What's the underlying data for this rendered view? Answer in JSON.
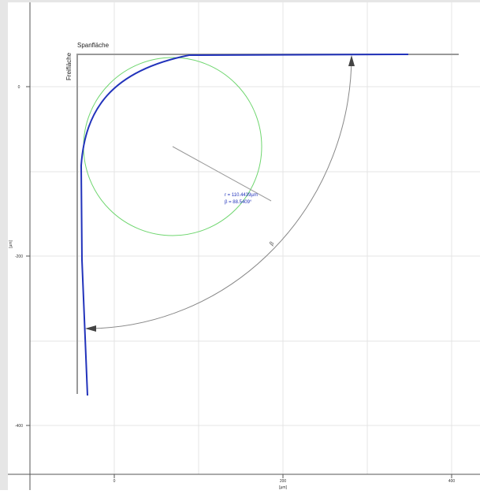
{
  "labels": {
    "rake_face": "Spanfläche",
    "flank_face": "Freifläche",
    "radius": "r = 110.4439µm",
    "wedge_angle": "β = 88.5409°",
    "angle_symbol": "β"
  },
  "y_axis": {
    "label": "[µm]",
    "ticks": [
      "0",
      "-200",
      "-400"
    ]
  },
  "x_axis": {
    "label": "[µm]",
    "ticks": [
      "0",
      "200",
      "400"
    ]
  }
}
